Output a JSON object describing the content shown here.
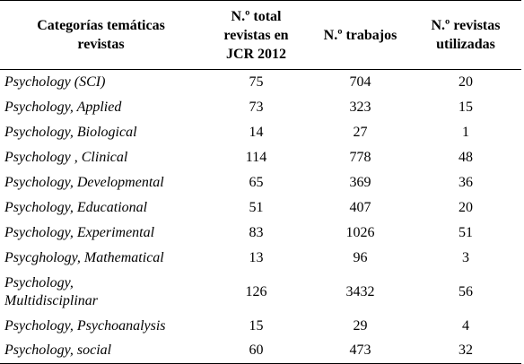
{
  "table": {
    "headers": {
      "category": [
        "Categorías temáticas",
        "revistas"
      ],
      "total_journals": [
        "N.º total",
        "revistas en",
        "JCR 2012"
      ],
      "papers": [
        "N.º trabajos"
      ],
      "journals_used": [
        "N.º revistas",
        "utilizadas"
      ]
    },
    "rows": [
      {
        "category": [
          "Psychology (SCI)"
        ],
        "total_journals": "75",
        "papers": "704",
        "journals_used": "20"
      },
      {
        "category": [
          "Psychology, Applied"
        ],
        "total_journals": "73",
        "papers": "323",
        "journals_used": "15"
      },
      {
        "category": [
          "Psychology, Biological"
        ],
        "total_journals": "14",
        "papers": "27",
        "journals_used": "1"
      },
      {
        "category": [
          "Psychology , Clinical"
        ],
        "total_journals": "114",
        "papers": "778",
        "journals_used": "48"
      },
      {
        "category": [
          "Psychology, Developmental"
        ],
        "total_journals": "65",
        "papers": "369",
        "journals_used": "36"
      },
      {
        "category": [
          "Psychology, Educational"
        ],
        "total_journals": "51",
        "papers": "407",
        "journals_used": "20"
      },
      {
        "category": [
          "Psychology, Experimental"
        ],
        "total_journals": "83",
        "papers": "1026",
        "journals_used": "51"
      },
      {
        "category": [
          "Psycghology, Mathematical"
        ],
        "total_journals": "13",
        "papers": "96",
        "journals_used": "3"
      },
      {
        "category": [
          "Psychology,",
          "Multidisciplinar"
        ],
        "total_journals": "126",
        "papers": "3432",
        "journals_used": "56"
      },
      {
        "category": [
          "Psychology, Psychoanalysis"
        ],
        "total_journals": "15",
        "papers": "29",
        "journals_used": "4"
      },
      {
        "category": [
          "Psychology, social"
        ],
        "total_journals": "60",
        "papers": "473",
        "journals_used": "32"
      }
    ]
  }
}
